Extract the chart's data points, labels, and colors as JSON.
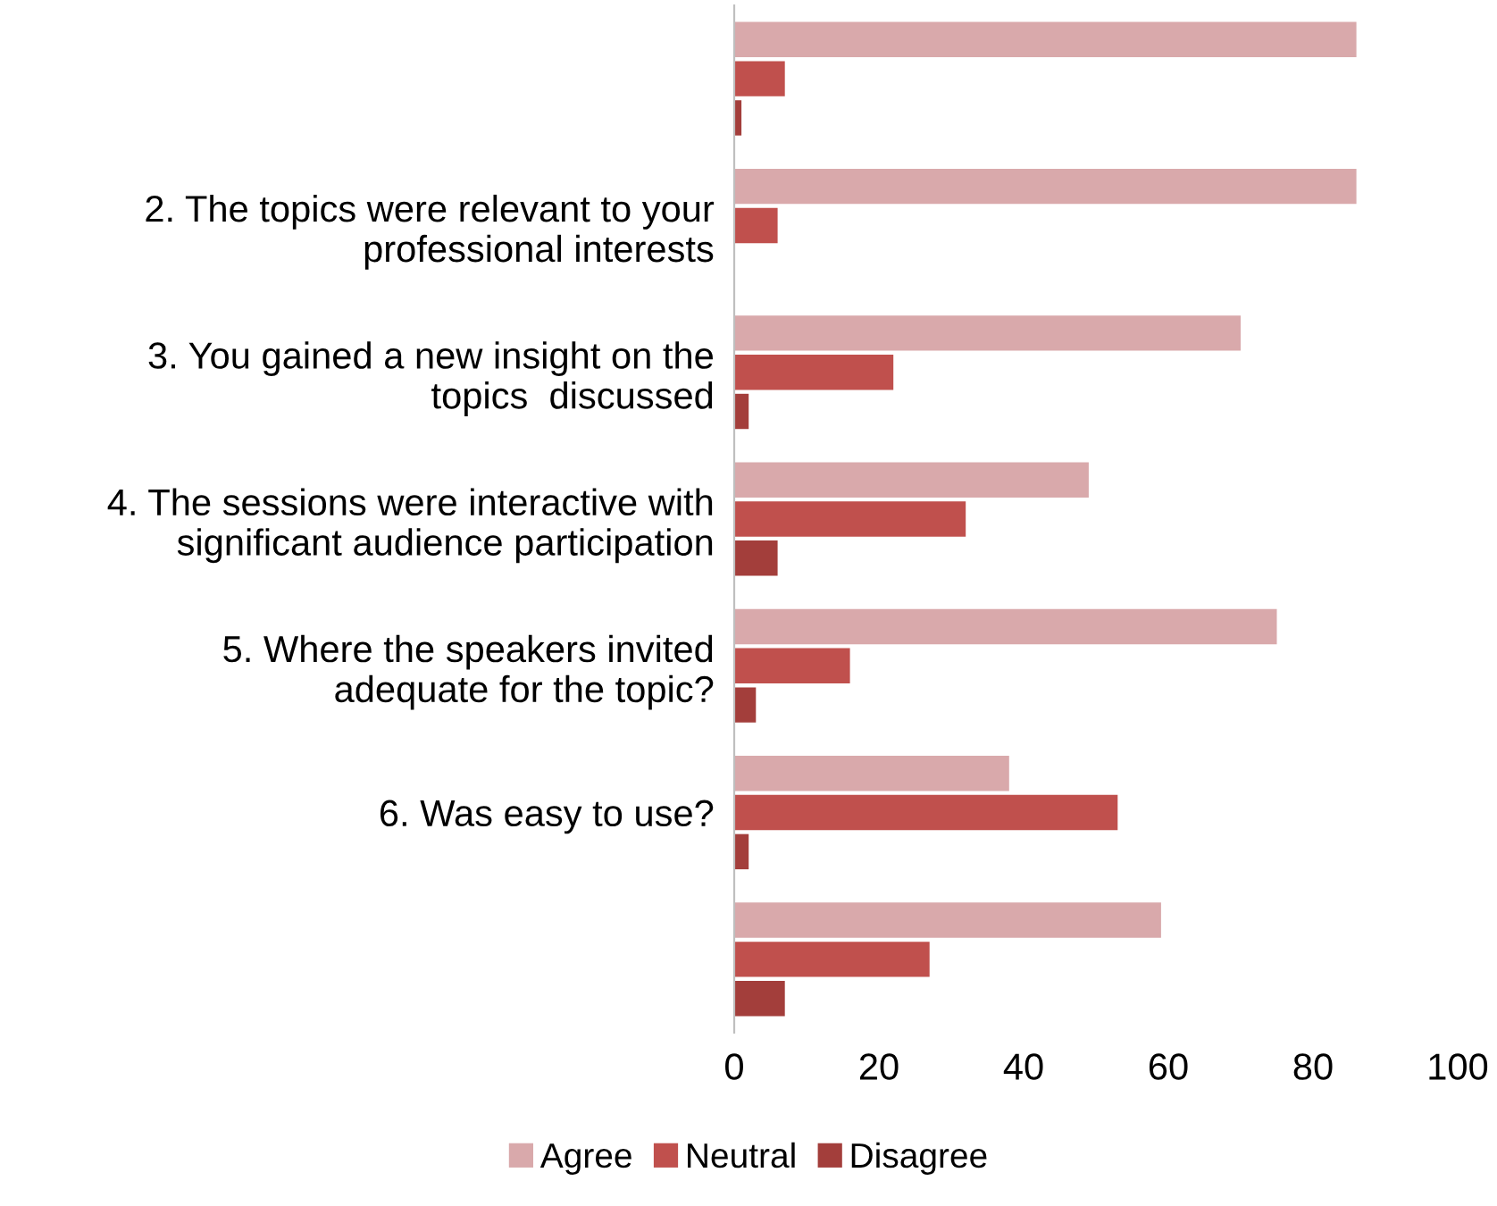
{
  "chart_data": {
    "type": "bar",
    "orientation": "horizontal",
    "categories": [
      null,
      "2. The topics were relevant to your\nprofessional interests",
      "3. You gained a new insight on the\ntopics  discussed",
      "4. The sessions were interactive with\nsignificant audience participation",
      "5. Where the speakers invited\nadequate for the topic?",
      "6. Was easy to use?",
      null
    ],
    "series": [
      {
        "name": "Agree",
        "color": "#d9a9ab",
        "values": [
          86,
          86,
          70,
          49,
          75,
          38,
          59
        ]
      },
      {
        "name": "Neutral",
        "color": "#c0504d",
        "values": [
          7,
          6,
          22,
          32,
          16,
          53,
          27
        ]
      },
      {
        "name": "Disagree",
        "color": "#a33e3b",
        "values": [
          1,
          0,
          2,
          6,
          3,
          2,
          7
        ]
      }
    ],
    "xlim": [
      0,
      100
    ],
    "xticks": [
      0,
      20,
      40,
      60,
      80,
      100
    ],
    "grid": false,
    "legend": "bottom"
  }
}
